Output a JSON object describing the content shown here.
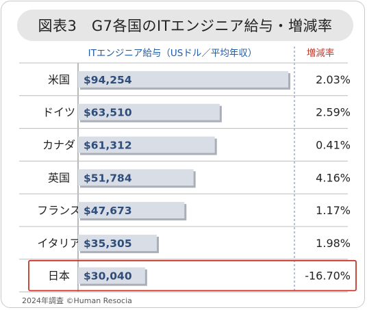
{
  "title": "図表3　G7各国のITエンジニア給与・増減率",
  "footer": "2024年調査 ©Human Resocia",
  "colors": {
    "bar": "#d9dde6",
    "bar_shadow": "#a9aeb8",
    "value_text": "#2f4d7a",
    "accent_red": "#c0392b",
    "header_blue": "#1f5aa6",
    "divider": "#bcbcbc"
  },
  "chart_data": {
    "type": "bar",
    "orientation": "horizontal",
    "salary_header": "ITエンジニア給与（USドル／平均年収）",
    "change_header": "増減率",
    "categories": [
      "米国",
      "ドイツ",
      "カナダ",
      "英国",
      "フランス",
      "イタリア",
      "日本"
    ],
    "values": [
      94254,
      63510,
      61312,
      51784,
      47673,
      35305,
      30040
    ],
    "value_labels": [
      "$94,254",
      "$63,510",
      "$61,312",
      "$51,784",
      "$47,673",
      "$35,305",
      "$30,040"
    ],
    "change_labels": [
      "2.03%",
      "2.59%",
      "0.41%",
      "4.16%",
      "1.17%",
      "1.98%",
      "-16.70%"
    ],
    "highlight_index": 6
  }
}
